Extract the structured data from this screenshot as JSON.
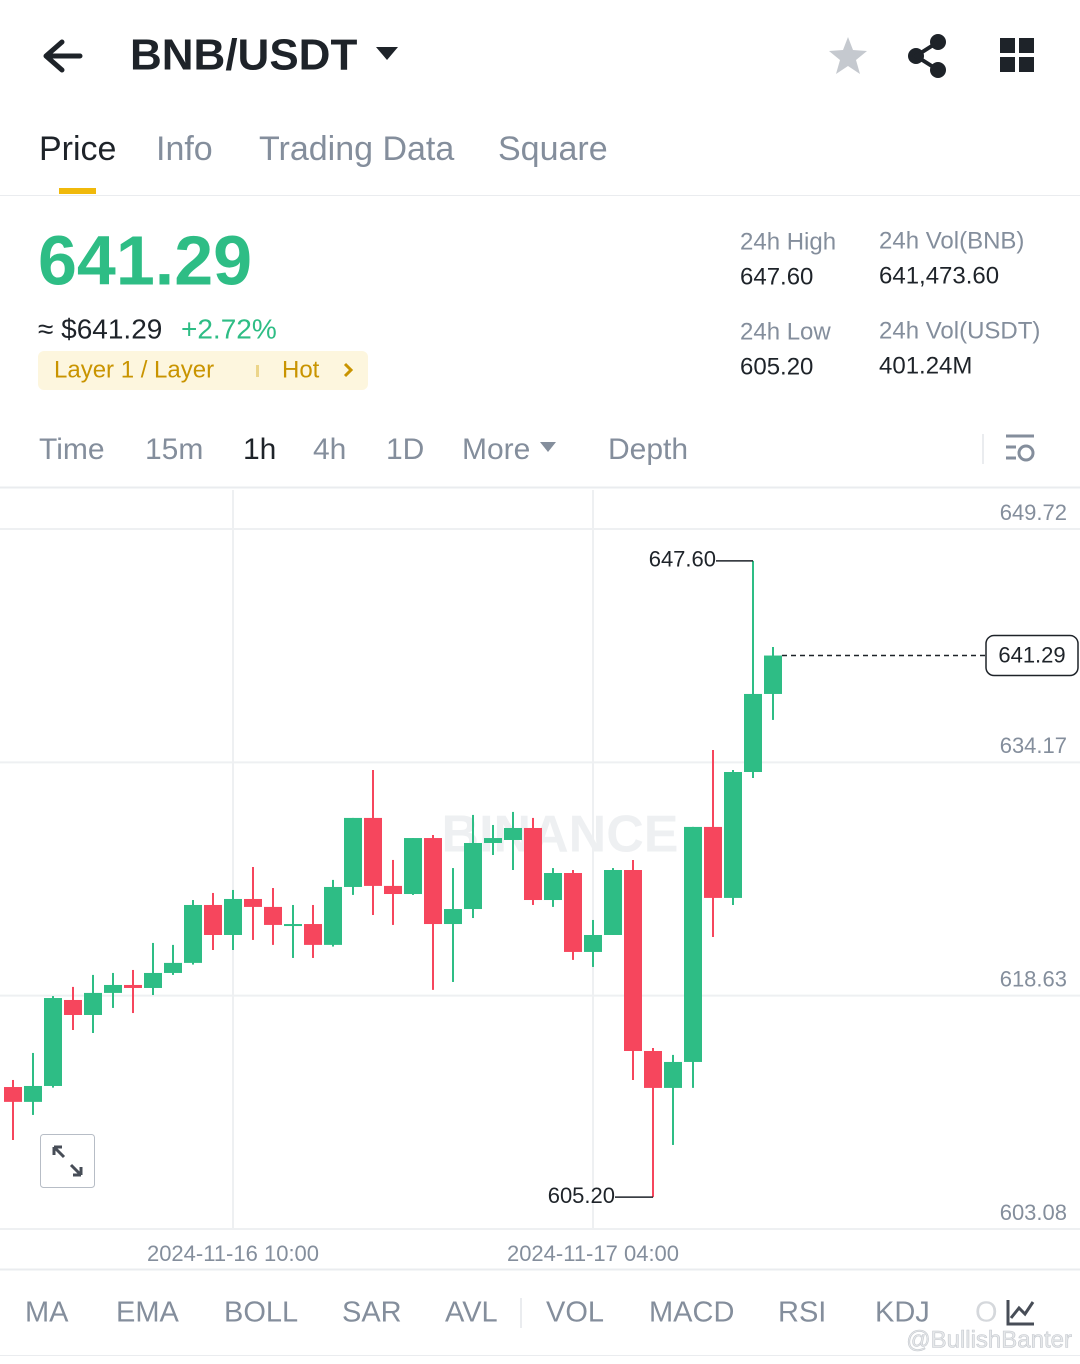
{
  "header": {
    "pair": "BNB/USDT"
  },
  "tabs": [
    "Price",
    "Info",
    "Trading Data",
    "Square"
  ],
  "price": {
    "last": "641.29",
    "fiat": "≈ $641.29",
    "change": "+2.72%"
  },
  "tags": {
    "sector": "Layer 1 / Layer",
    "hot": "Hot"
  },
  "stats": [
    {
      "label": "24h High",
      "value": "647.60"
    },
    {
      "label": "24h Vol(BNB)",
      "value": "641,473.60"
    },
    {
      "label": "24h Low",
      "value": "605.20"
    },
    {
      "label": "24h Vol(USDT)",
      "value": "401.24M"
    }
  ],
  "intervals": [
    "Time",
    "15m",
    "1h",
    "4h",
    "1D",
    "More",
    "Depth"
  ],
  "indicators": [
    "MA",
    "EMA",
    "BOLL",
    "SAR",
    "AVL",
    "VOL",
    "MACD",
    "RSI",
    "KDJ",
    "O"
  ],
  "watermark": "@BullishBanter",
  "chart_data": {
    "type": "candlestick",
    "watermark": "BINANCE",
    "categories": [
      null,
      null,
      null,
      null,
      null,
      null,
      null,
      null,
      null,
      null,
      null,
      "2024-11-16 10:00",
      null,
      null,
      null,
      null,
      null,
      null,
      null,
      null,
      null,
      null,
      null,
      null,
      null,
      null,
      null,
      null,
      null,
      "2024-11-17 04:00",
      null,
      null,
      null,
      null,
      null,
      null,
      null,
      null,
      null
    ],
    "open": [
      612.54,
      611.55,
      612.61,
      618.34,
      617.34,
      618.81,
      619.34,
      619.14,
      620.14,
      620.81,
      624.67,
      622.67,
      625.07,
      624.54,
      623.34,
      623.4,
      622.01,
      625.87,
      630.47,
      625.94,
      625.4,
      629.13,
      623.4,
      624.4,
      628.8,
      629.0,
      629.8,
      625.0,
      626.8,
      621.54,
      622.67,
      627.0,
      614.94,
      612.48,
      614.21,
      629.87,
      625.14,
      633.53,
      638.73
    ],
    "high": [
      613.01,
      614.81,
      618.6,
      619.21,
      620.01,
      620.14,
      620.34,
      622.14,
      622.01,
      625.0,
      625.47,
      625.67,
      627.2,
      625.8,
      624.67,
      624.67,
      626.34,
      630.47,
      633.66,
      627.67,
      629.13,
      629.33,
      627.13,
      630.67,
      630.0,
      630.87,
      630.47,
      627.13,
      627.0,
      623.67,
      627.13,
      627.67,
      615.14,
      614.68,
      629.87,
      635.0,
      633.66,
      647.6,
      641.86
    ],
    "low": [
      609.01,
      610.68,
      612.5,
      616.34,
      616.14,
      617.81,
      617.47,
      618.67,
      620.01,
      620.7,
      621.67,
      621.67,
      622.34,
      622.01,
      621.14,
      621.14,
      621.9,
      625.34,
      624.0,
      623.34,
      625.34,
      619.01,
      619.54,
      623.8,
      628.0,
      627.0,
      624.67,
      624.54,
      621.01,
      620.54,
      622.67,
      613.01,
      605.2,
      608.68,
      612.48,
      622.54,
      624.67,
      633.13,
      637.0
    ],
    "close": [
      611.55,
      612.61,
      618.47,
      617.34,
      618.81,
      619.34,
      619.14,
      620.14,
      620.81,
      624.67,
      622.67,
      625.07,
      624.54,
      623.34,
      623.4,
      622.01,
      625.87,
      630.47,
      625.94,
      625.4,
      629.13,
      623.4,
      624.4,
      628.8,
      629.13,
      629.8,
      625.0,
      626.8,
      621.54,
      622.67,
      627.0,
      614.94,
      612.48,
      614.21,
      629.87,
      625.14,
      633.53,
      638.73,
      641.29
    ],
    "up_color": "#2ebd85",
    "down_color": "#f6465d",
    "ylim": [
      603.08,
      652.32
    ],
    "yticks": [
      649.72,
      634.17,
      618.63,
      603.08
    ],
    "grid": true,
    "high_marker": {
      "value": 647.6,
      "label": "647.60"
    },
    "low_marker": {
      "value": 605.2,
      "label": "605.20"
    },
    "last_marker": {
      "value": 641.29,
      "label": "641.29"
    }
  }
}
